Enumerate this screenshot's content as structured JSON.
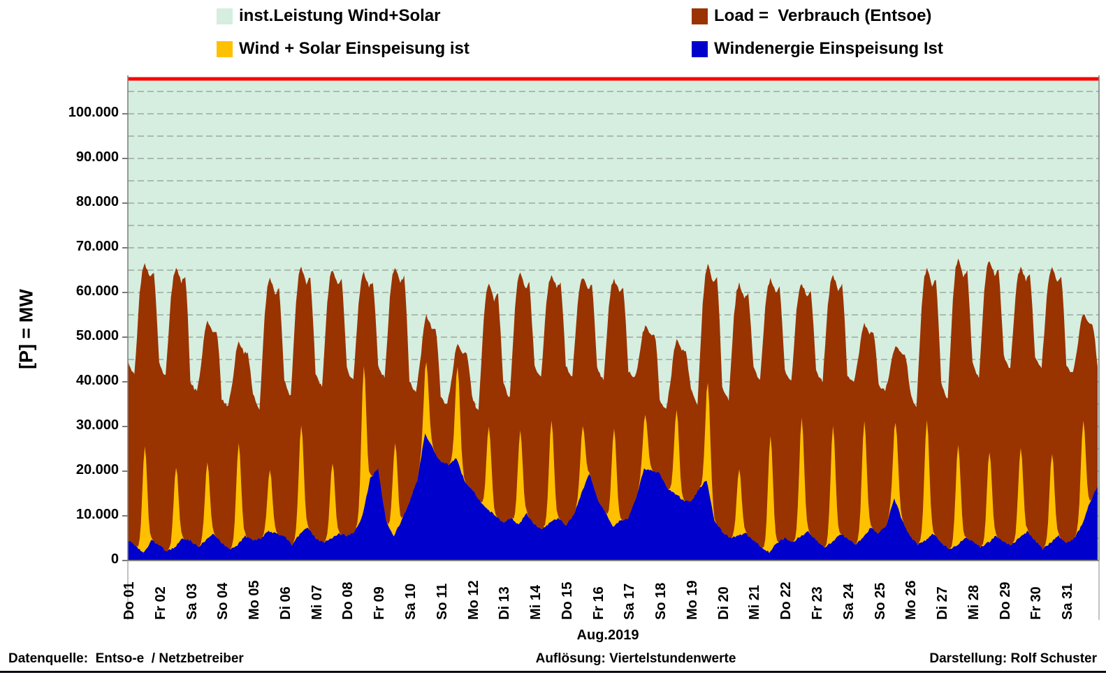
{
  "legend": {
    "items": [
      {
        "label": "inst.Leistung Wind+Solar",
        "color": "#D5EEDF"
      },
      {
        "label": "Wind + Solar Einspeisung ist",
        "color": "#FFC000"
      },
      {
        "label": "Load =  Verbrauch (Entsoe)",
        "color": "#993300"
      },
      {
        "label": "Windenergie Einspeisung Ist",
        "color": "#0000CC"
      }
    ]
  },
  "y_axis": {
    "label": "[P] = MW"
  },
  "x_axis": {
    "month_label": "Aug.2019"
  },
  "footer": {
    "left": "Datenquelle:  Entso-e  / Netzbetreiber",
    "center": "Auflösung: Viertelstundenwerte",
    "right": "Darstellung: Rolf Schuster"
  },
  "chart_data": {
    "type": "area",
    "unit": "MW",
    "month": "Aug.2019",
    "y_axis_label": "[P] = MW",
    "y_ticks_mw": [
      0,
      10000,
      20000,
      30000,
      40000,
      50000,
      60000,
      70000,
      80000,
      90000,
      100000
    ],
    "y_tick_labels": [
      "0",
      "10.000",
      "20.000",
      "30.000",
      "40.000",
      "50.000",
      "60.000",
      "70.000",
      "80.000",
      "90.000",
      "100.000"
    ],
    "y_max_mw": 107800,
    "gridline_step_mw": 5000,
    "grid_color": "#909C94",
    "axis_color": "#808080",
    "days": [
      "Do 01",
      "Fr 02",
      "Sa 03",
      "So 04",
      "Mo 05",
      "Di 06",
      "Mi 07",
      "Do 08",
      "Fr 09",
      "Sa 10",
      "So 11",
      "Mo 12",
      "Di 13",
      "Mi 14",
      "Do 15",
      "Fr 16",
      "Sa 17",
      "So 18",
      "Mo 19",
      "Di 20",
      "Mi 21",
      "Do 22",
      "Fr 23",
      "Sa 24",
      "So 25",
      "Mo 26",
      "Di 27",
      "Mi 28",
      "Do 29",
      "Fr 30",
      "Sa 31"
    ],
    "series": [
      {
        "name": "inst.Leistung Wind+Solar",
        "color": "#D5EEDF",
        "line_color": "#FF0000",
        "constant_value_mw": 107500
      },
      {
        "name": "Load =  Verbrauch (Entsoe)",
        "color": "#993300",
        "daily_morning_min_mw": [
          41500,
          41300,
          38000,
          34500,
          33800,
          36900,
          38900,
          40200,
          40900,
          38000,
          35000,
          33500,
          36500,
          41000,
          41000,
          40500,
          41000,
          34000,
          35000,
          36000,
          40500,
          40000,
          40000,
          40000,
          38000,
          34500,
          36000,
          41000,
          43000,
          43000,
          42000
        ],
        "daily_peak_mw": [
          66500,
          65500,
          53800,
          48800,
          63400,
          65800,
          65200,
          64400,
          65500,
          54800,
          48500,
          62000,
          64500,
          64000,
          63500,
          63000,
          52500,
          49500,
          66200,
          62000,
          63000,
          62000,
          63700,
          53000,
          48000,
          65500,
          67600,
          67300,
          65700,
          65400,
          55200
        ]
      },
      {
        "name": "Wind + Solar Einspeisung ist",
        "color": "#FFC000",
        "daily_midday_peak_mw": [
          25400,
          21000,
          21800,
          26200,
          20200,
          30500,
          22000,
          43600,
          26500,
          44400,
          43300,
          30000,
          29000,
          31400,
          29900,
          29700,
          32500,
          33700,
          39500,
          20300,
          28100,
          32000,
          30000,
          31000,
          31000,
          31500,
          26000,
          24500,
          25000,
          24000,
          31500
        ]
      },
      {
        "name": "Windenergie Einspeisung Ist",
        "color": "#0000CC",
        "mw_at_6h_steps": [
          4500,
          3500,
          1500,
          4500,
          3500,
          2000,
          3000,
          5000,
          4500,
          3000,
          4500,
          6000,
          4000,
          2500,
          3500,
          5500,
          4500,
          5000,
          6500,
          6000,
          5500,
          3500,
          6000,
          7500,
          5000,
          4000,
          5000,
          6000,
          5500,
          6500,
          10000,
          18500,
          20500,
          9000,
          5500,
          9000,
          13000,
          18000,
          28500,
          25000,
          22000,
          21500,
          23000,
          18000,
          16000,
          13500,
          11500,
          10000,
          8500,
          9500,
          8000,
          10500,
          8000,
          7000,
          8500,
          9500,
          8000,
          10000,
          15000,
          19500,
          14000,
          11000,
          7500,
          9000,
          9500,
          14000,
          20500,
          20000,
          19500,
          16000,
          15000,
          13500,
          13000,
          16000,
          18000,
          9000,
          6500,
          5000,
          5500,
          6000,
          4500,
          3000,
          1800,
          4000,
          5000,
          4000,
          5500,
          6500,
          4500,
          3000,
          4000,
          6000,
          5000,
          3500,
          5000,
          7500,
          6000,
          8000,
          14000,
          9000,
          5500,
          3500,
          4500,
          6000,
          4000,
          2500,
          3500,
          5000,
          4500,
          3000,
          4000,
          5500,
          4000,
          3500,
          5000,
          6500,
          4500,
          2500,
          4000,
          5500,
          4000,
          5000,
          8000,
          13000,
          16500
        ]
      }
    ]
  }
}
